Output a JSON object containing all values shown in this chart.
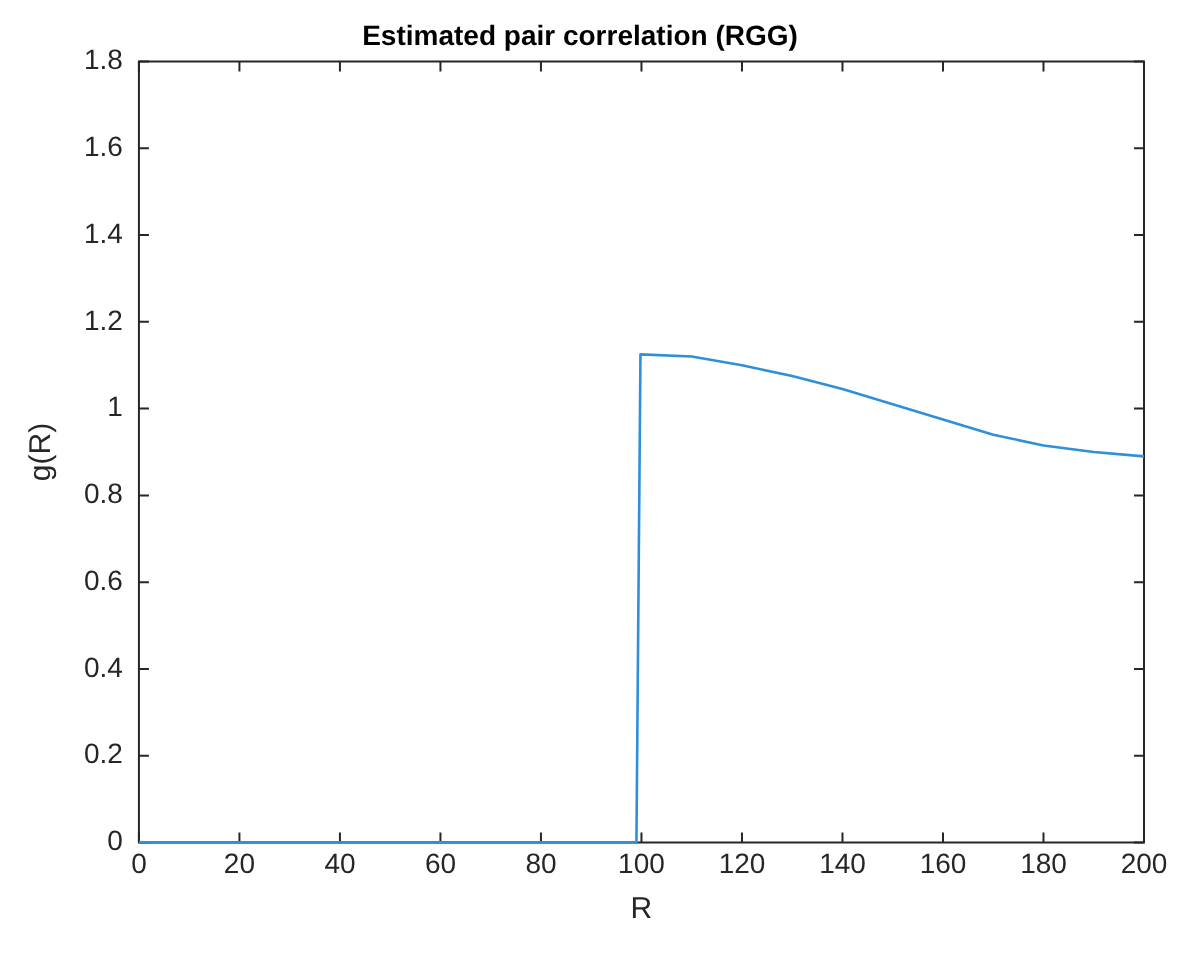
{
  "chart_data": {
    "type": "line",
    "title": "Estimated pair correlation (RGG)",
    "xlabel": "R",
    "ylabel": "g(R)",
    "xlim": [
      0,
      200
    ],
    "xticks": [
      0,
      20,
      40,
      60,
      80,
      100,
      120,
      140,
      160,
      180,
      200
    ],
    "ylim": [
      0,
      1.8
    ],
    "yticks": [
      0,
      0.2,
      0.4,
      0.6,
      0.8,
      1,
      1.2,
      1.4,
      1.6,
      1.8
    ],
    "grid": false,
    "legend": false,
    "series": [
      {
        "color": "#2f8fd8",
        "x": [
          0,
          99,
          99.8,
          110,
          120,
          130,
          140,
          150,
          160,
          170,
          180,
          190,
          200
        ],
        "values": [
          0,
          0,
          1.125,
          1.12,
          1.1,
          1.075,
          1.045,
          1.01,
          0.975,
          0.94,
          0.915,
          0.9,
          0.89
        ]
      }
    ]
  }
}
